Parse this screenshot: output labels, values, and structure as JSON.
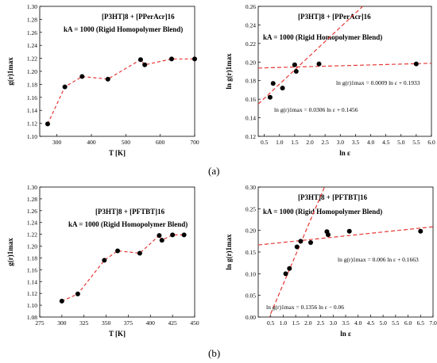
{
  "captions": {
    "a": "(a)",
    "b": "(b)"
  },
  "chart_data": [
    {
      "id": "a-left",
      "type": "scatter",
      "title_line1": "[P3HT]8 + [PPerAcr]16",
      "title_line2": "kA = 1000 (Rigid Homopolymer Blend)",
      "xlabel": "T [K]",
      "ylabel": "g(r)1max",
      "xlim": [
        250,
        700
      ],
      "ylim": [
        1.1,
        1.3
      ],
      "xticks": [
        300,
        400,
        500,
        600,
        700
      ],
      "yticks": [
        1.1,
        1.12,
        1.14,
        1.16,
        1.18,
        1.2,
        1.22,
        1.24,
        1.26,
        1.28,
        1.3
      ],
      "series": [
        {
          "x": [
            273,
            323,
            373,
            448,
            543,
            555,
            633,
            700
          ],
          "y": [
            1.119,
            1.176,
            1.192,
            1.188,
            1.218,
            1.21,
            1.219,
            1.219
          ]
        }
      ],
      "line_style": "dashed red"
    },
    {
      "id": "a-right",
      "type": "scatter",
      "title_line1": "[P3HT]8 + [PPerAcr]16",
      "title_line2": "kA = 1000 (Rigid Homopolymer Blend)",
      "xlabel": "ln ε",
      "ylabel": "ln g(r)1max",
      "xlim": [
        0.3,
        6.0
      ],
      "ylim": [
        0.12,
        0.26
      ],
      "xticks": [
        0.5,
        1.0,
        1.5,
        2.0,
        2.5,
        3.0,
        3.5,
        4.0,
        4.5,
        5.0,
        5.5,
        6.0
      ],
      "yticks": [
        0.12,
        0.14,
        0.16,
        0.18,
        0.2,
        0.22,
        0.24,
        0.26
      ],
      "series": [
        {
          "x": [
            0.69,
            0.79,
            1.1,
            1.5,
            1.55,
            2.3,
            5.5
          ],
          "y": [
            0.162,
            0.177,
            0.172,
            0.197,
            0.19,
            0.198,
            0.198
          ]
        }
      ],
      "fits": [
        {
          "slope": 0.0306,
          "intercept": 0.1456,
          "label": "ln g(r)1max = 0.0306 ln ε + 0.1456"
        },
        {
          "slope": 0.0009,
          "intercept": 0.1933,
          "label": "ln g(r)1max = 0.0009 ln ε + 0.1933"
        }
      ]
    },
    {
      "id": "b-left",
      "type": "scatter",
      "title_line1": "[P3HT]8 + [PFTBT]16",
      "title_line2": "kA = 1000 (Rigid Homopolymer Blend)",
      "xlabel": "T [K]",
      "ylabel": "g(r)1max",
      "xlim": [
        275,
        450
      ],
      "ylim": [
        1.08,
        1.3
      ],
      "xticks": [
        275,
        300,
        325,
        350,
        375,
        400,
        425,
        450
      ],
      "yticks": [
        1.08,
        1.1,
        1.12,
        1.14,
        1.16,
        1.18,
        1.2,
        1.22,
        1.24,
        1.26,
        1.28,
        1.3
      ],
      "series": [
        {
          "x": [
            300,
            318,
            348,
            363,
            388,
            410,
            413,
            425,
            438
          ],
          "y": [
            1.107,
            1.119,
            1.176,
            1.192,
            1.188,
            1.218,
            1.21,
            1.219,
            1.219
          ]
        }
      ],
      "line_style": "dashed red"
    },
    {
      "id": "b-right",
      "type": "scatter",
      "title_line1": "[P3HT]8 + [PFTBT]16",
      "title_line2": "kA = 1000 (Rigid Homopolymer Blend)",
      "xlabel": "ln ε",
      "ylabel": "ln g(r)1max",
      "xlim": [
        0.0,
        7.0
      ],
      "ylim": [
        0.0,
        0.3
      ],
      "xticks": [
        0.5,
        1.0,
        1.5,
        2.0,
        2.5,
        3.0,
        3.5,
        4.0,
        4.5,
        5.0,
        5.5,
        6.0,
        6.5,
        7.0
      ],
      "yticks": [
        0.0,
        0.05,
        0.1,
        0.15,
        0.2,
        0.25,
        0.3
      ],
      "series": [
        {
          "x": [
            1.1,
            1.25,
            1.55,
            1.7,
            2.1,
            2.75,
            2.8,
            3.65,
            6.5
          ],
          "y": [
            0.1,
            0.112,
            0.162,
            0.175,
            0.172,
            0.197,
            0.19,
            0.198,
            0.198
          ]
        }
      ],
      "fits": [
        {
          "slope": 0.1356,
          "intercept": -0.06,
          "label": "ln g(r)1max = 0.1356 ln ε − 0.06"
        },
        {
          "slope": 0.006,
          "intercept": 0.1663,
          "label": "ln g(r)1max = 0.006 ln ε + 0.1663"
        }
      ]
    }
  ]
}
